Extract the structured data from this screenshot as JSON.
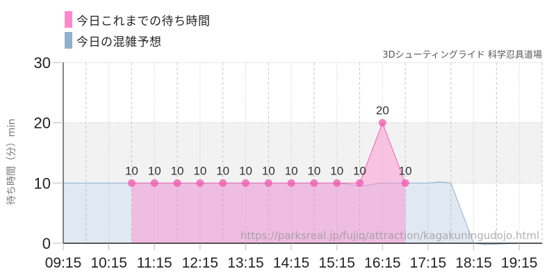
{
  "legend": [
    {
      "label": "今日これまでの待ち時間",
      "color": "#ff88cc"
    },
    {
      "label": "今日の混雑予想",
      "color": "#8eb0cf"
    }
  ],
  "subtitle": "3Dシューティングライド 科学忍具道場",
  "watermark": "https://parksreal.jp/fujiq/attraction/kagakuningudojo.html",
  "chart_data": {
    "type": "area",
    "title": "",
    "subtitle": "3Dシューティングライド 科学忍具道場",
    "xlabel": "",
    "ylabel": "待ち時間（分）min",
    "ylim": [
      0,
      30
    ],
    "yticks": [
      0,
      10,
      20,
      30
    ],
    "xlim": [
      "09:15",
      "19:45"
    ],
    "xticks": [
      "09:15",
      "10:15",
      "11:15",
      "12:15",
      "13:15",
      "14:15",
      "15:15",
      "16:15",
      "17:15",
      "18:15",
      "19:15"
    ],
    "grid": true,
    "highlight_band": [
      10,
      20
    ],
    "legend_position": "top-left",
    "series": [
      {
        "name": "今日これまでの待ち時間",
        "type": "area-with-markers",
        "color": "#ff88cc",
        "x": [
          "10:45",
          "11:15",
          "11:45",
          "12:15",
          "12:45",
          "13:15",
          "13:45",
          "14:15",
          "14:45",
          "15:15",
          "15:45",
          "16:15",
          "16:45"
        ],
        "values": [
          10,
          10,
          10,
          10,
          10,
          10,
          10,
          10,
          10,
          10,
          10,
          20,
          10
        ],
        "data_labels": true
      },
      {
        "name": "今日の混雑予想",
        "type": "area",
        "color": "#8eb0cf",
        "x": [
          "09:15",
          "09:45",
          "10:15",
          "10:45",
          "11:15",
          "11:45",
          "12:15",
          "12:45",
          "13:15",
          "13:45",
          "14:15",
          "14:45",
          "15:15",
          "15:30",
          "15:45",
          "16:15",
          "16:45",
          "17:15",
          "17:30",
          "17:45",
          "18:15",
          "18:30",
          "19:15",
          "19:45"
        ],
        "values": [
          10,
          10,
          10,
          10,
          10,
          10,
          10,
          10,
          10,
          10,
          10,
          10,
          10,
          9.8,
          9.5,
          10,
          10,
          10,
          10.2,
          10,
          0,
          -0.2,
          0,
          0
        ]
      }
    ]
  }
}
